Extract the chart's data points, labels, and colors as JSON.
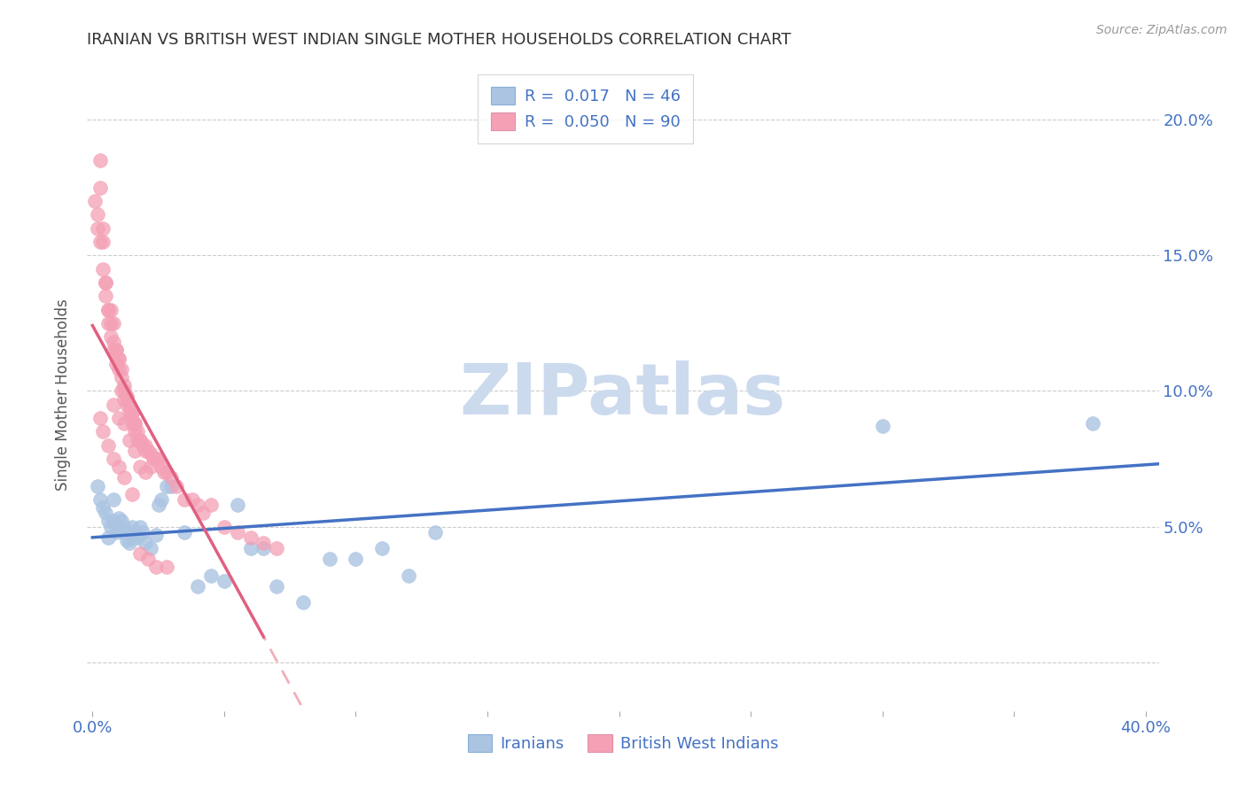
{
  "title": "IRANIAN VS BRITISH WEST INDIAN SINGLE MOTHER HOUSEHOLDS CORRELATION CHART",
  "source": "Source: ZipAtlas.com",
  "ylabel": "Single Mother Households",
  "ytick_labels": [
    "",
    "5.0%",
    "10.0%",
    "15.0%",
    "20.0%"
  ],
  "yticks": [
    0.0,
    0.05,
    0.1,
    0.15,
    0.2
  ],
  "xticks": [
    0.0,
    0.05,
    0.1,
    0.15,
    0.2,
    0.25,
    0.3,
    0.35,
    0.4
  ],
  "xlim": [
    -0.002,
    0.405
  ],
  "ylim": [
    -0.018,
    0.215
  ],
  "watermark": "ZIPatlas",
  "legend_iranian_r": "R =  0.017",
  "legend_iranian_n": "N = 46",
  "legend_bwi_r": "R =  0.050",
  "legend_bwi_n": "N = 90",
  "iranian_face_color": "#aac4e2",
  "bwi_face_color": "#f4a0b5",
  "iranian_line_color": "#4472c4",
  "bwi_solid_line_color": "#e06080",
  "bwi_dash_line_color": "#f0b0b8",
  "title_color": "#333333",
  "label_color": "#555555",
  "tick_color": "#4472c4",
  "grid_color": "#cccccc",
  "source_color": "#999999",
  "watermark_color": "#ccdaee",
  "iranians_x": [
    0.002,
    0.003,
    0.004,
    0.005,
    0.006,
    0.007,
    0.008,
    0.009,
    0.01,
    0.011,
    0.012,
    0.013,
    0.014,
    0.015,
    0.016,
    0.017,
    0.018,
    0.019,
    0.02,
    0.022,
    0.024,
    0.025,
    0.026,
    0.028,
    0.03,
    0.035,
    0.04,
    0.045,
    0.05,
    0.055,
    0.06,
    0.065,
    0.07,
    0.08,
    0.09,
    0.1,
    0.11,
    0.12,
    0.13,
    0.3,
    0.38,
    0.006,
    0.008,
    0.01,
    0.012,
    0.015
  ],
  "iranians_y": [
    0.065,
    0.06,
    0.057,
    0.055,
    0.052,
    0.05,
    0.052,
    0.048,
    0.05,
    0.052,
    0.048,
    0.045,
    0.044,
    0.05,
    0.048,
    0.046,
    0.05,
    0.048,
    0.044,
    0.042,
    0.047,
    0.058,
    0.06,
    0.065,
    0.065,
    0.048,
    0.028,
    0.032,
    0.03,
    0.058,
    0.042,
    0.042,
    0.028,
    0.022,
    0.038,
    0.038,
    0.042,
    0.032,
    0.048,
    0.087,
    0.088,
    0.046,
    0.06,
    0.053,
    0.05,
    0.046
  ],
  "bwi_x": [
    0.001,
    0.002,
    0.002,
    0.003,
    0.003,
    0.004,
    0.004,
    0.005,
    0.005,
    0.006,
    0.006,
    0.007,
    0.007,
    0.008,
    0.008,
    0.009,
    0.009,
    0.01,
    0.01,
    0.011,
    0.011,
    0.012,
    0.012,
    0.013,
    0.013,
    0.014,
    0.014,
    0.015,
    0.015,
    0.016,
    0.016,
    0.017,
    0.017,
    0.018,
    0.019,
    0.02,
    0.021,
    0.022,
    0.023,
    0.024,
    0.025,
    0.026,
    0.027,
    0.028,
    0.03,
    0.032,
    0.035,
    0.038,
    0.04,
    0.042,
    0.045,
    0.05,
    0.055,
    0.06,
    0.065,
    0.07,
    0.003,
    0.004,
    0.005,
    0.006,
    0.007,
    0.008,
    0.009,
    0.01,
    0.011,
    0.012,
    0.013,
    0.015,
    0.016,
    0.018,
    0.02,
    0.022,
    0.008,
    0.01,
    0.012,
    0.014,
    0.016,
    0.018,
    0.02,
    0.003,
    0.004,
    0.006,
    0.008,
    0.01,
    0.012,
    0.015,
    0.018,
    0.021,
    0.024,
    0.028
  ],
  "bwi_y": [
    0.17,
    0.165,
    0.16,
    0.175,
    0.155,
    0.155,
    0.145,
    0.14,
    0.135,
    0.13,
    0.125,
    0.125,
    0.12,
    0.118,
    0.115,
    0.115,
    0.11,
    0.112,
    0.108,
    0.105,
    0.1,
    0.1,
    0.097,
    0.098,
    0.095,
    0.095,
    0.092,
    0.092,
    0.088,
    0.088,
    0.085,
    0.085,
    0.082,
    0.082,
    0.08,
    0.08,
    0.078,
    0.077,
    0.075,
    0.075,
    0.075,
    0.072,
    0.07,
    0.07,
    0.068,
    0.065,
    0.06,
    0.06,
    0.058,
    0.055,
    0.058,
    0.05,
    0.048,
    0.046,
    0.044,
    0.042,
    0.185,
    0.16,
    0.14,
    0.13,
    0.13,
    0.125,
    0.115,
    0.112,
    0.108,
    0.102,
    0.098,
    0.092,
    0.088,
    0.082,
    0.078,
    0.072,
    0.095,
    0.09,
    0.088,
    0.082,
    0.078,
    0.072,
    0.07,
    0.09,
    0.085,
    0.08,
    0.075,
    0.072,
    0.068,
    0.062,
    0.04,
    0.038,
    0.035,
    0.035
  ]
}
